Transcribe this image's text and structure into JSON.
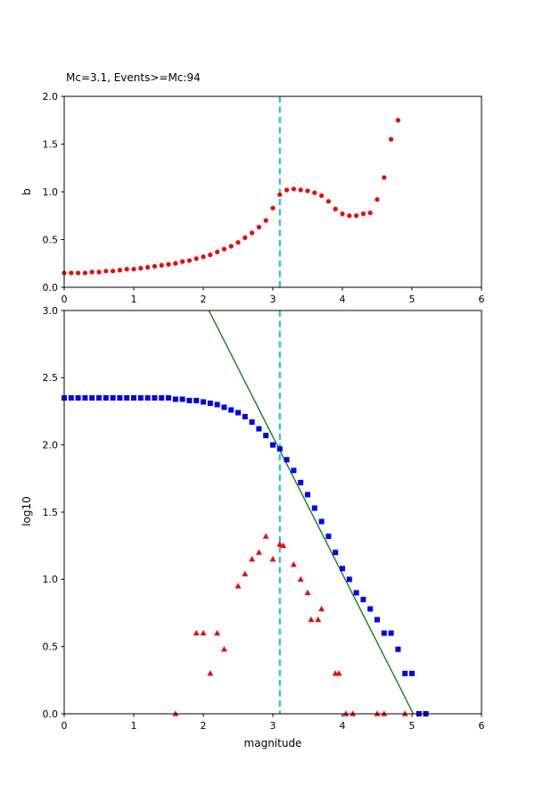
{
  "figure": {
    "background": "#ffffff",
    "frame_color": "#000000"
  },
  "chart_data": [
    {
      "type": "scatter",
      "name": "b-value-vs-magnitude",
      "title": "Mc=3.1, Events>=Mc:94",
      "xlabel": "",
      "ylabel": "b",
      "xlim": [
        0,
        6
      ],
      "ylim": [
        0,
        2
      ],
      "grid": false,
      "legend": "none",
      "xticks": [
        {
          "v": 0,
          "label": "0"
        },
        {
          "v": 1,
          "label": "1"
        },
        {
          "v": 2,
          "label": "2"
        },
        {
          "v": 3,
          "label": "3"
        },
        {
          "v": 4,
          "label": "4"
        },
        {
          "v": 5,
          "label": "5"
        },
        {
          "v": 6,
          "label": "6"
        }
      ],
      "yticks": [
        {
          "v": 0.0,
          "label": "0.0"
        },
        {
          "v": 0.5,
          "label": "0.5"
        },
        {
          "v": 1.0,
          "label": "1.0"
        },
        {
          "v": 1.5,
          "label": "1.5"
        },
        {
          "v": 2.0,
          "label": "2.0"
        }
      ],
      "vline": {
        "name": "mc-cutoff-line",
        "x": 3.1,
        "color": "#00cccc",
        "style": "dashed"
      },
      "series": [
        {
          "name": "b-value-points",
          "marker": "circle",
          "color": "#ff0000",
          "points": [
            [
              0.0,
              0.15
            ],
            [
              0.1,
              0.15
            ],
            [
              0.2,
              0.15
            ],
            [
              0.3,
              0.15
            ],
            [
              0.4,
              0.16
            ],
            [
              0.5,
              0.16
            ],
            [
              0.6,
              0.17
            ],
            [
              0.7,
              0.17
            ],
            [
              0.8,
              0.18
            ],
            [
              0.9,
              0.19
            ],
            [
              1.0,
              0.19
            ],
            [
              1.1,
              0.2
            ],
            [
              1.2,
              0.21
            ],
            [
              1.3,
              0.22
            ],
            [
              1.4,
              0.23
            ],
            [
              1.5,
              0.24
            ],
            [
              1.6,
              0.25
            ],
            [
              1.7,
              0.27
            ],
            [
              1.8,
              0.28
            ],
            [
              1.9,
              0.3
            ],
            [
              2.0,
              0.32
            ],
            [
              2.1,
              0.34
            ],
            [
              2.2,
              0.37
            ],
            [
              2.3,
              0.4
            ],
            [
              2.4,
              0.43
            ],
            [
              2.5,
              0.47
            ],
            [
              2.6,
              0.52
            ],
            [
              2.7,
              0.57
            ],
            [
              2.8,
              0.63
            ],
            [
              2.9,
              0.7
            ],
            [
              3.0,
              0.83
            ],
            [
              3.1,
              0.97
            ],
            [
              3.2,
              1.02
            ],
            [
              3.3,
              1.03
            ],
            [
              3.4,
              1.02
            ],
            [
              3.5,
              1.01
            ],
            [
              3.6,
              0.99
            ],
            [
              3.7,
              0.96
            ],
            [
              3.8,
              0.9
            ],
            [
              3.9,
              0.82
            ],
            [
              4.0,
              0.77
            ],
            [
              4.1,
              0.75
            ],
            [
              4.2,
              0.75
            ],
            [
              4.3,
              0.77
            ],
            [
              4.4,
              0.78
            ],
            [
              4.5,
              0.92
            ],
            [
              4.6,
              1.15
            ],
            [
              4.7,
              1.55
            ],
            [
              4.8,
              1.75
            ]
          ]
        }
      ]
    },
    {
      "type": "scatter",
      "name": "frequency-magnitude-distribution",
      "title": "",
      "xlabel": "magnitude",
      "ylabel": "log10",
      "xlim": [
        0,
        6
      ],
      "ylim": [
        0,
        3
      ],
      "grid": false,
      "legend": "none",
      "xticks": [
        {
          "v": 0,
          "label": "0"
        },
        {
          "v": 1,
          "label": "1"
        },
        {
          "v": 2,
          "label": "2"
        },
        {
          "v": 3,
          "label": "3"
        },
        {
          "v": 4,
          "label": "4"
        },
        {
          "v": 5,
          "label": "5"
        },
        {
          "v": 6,
          "label": "6"
        }
      ],
      "yticks": [
        {
          "v": 0.0,
          "label": "0.0"
        },
        {
          "v": 0.5,
          "label": "0.5"
        },
        {
          "v": 1.0,
          "label": "1.0"
        },
        {
          "v": 1.5,
          "label": "1.5"
        },
        {
          "v": 2.0,
          "label": "2.0"
        },
        {
          "v": 2.5,
          "label": "2.5"
        },
        {
          "v": 3.0,
          "label": "3.0"
        }
      ],
      "vline": {
        "name": "mc-cutoff-line",
        "x": 3.1,
        "color": "#00cccc",
        "style": "dashed"
      },
      "fit_line": {
        "name": "gutenberg-richter-fit",
        "color": "#008000",
        "x": [
          2.08,
          5.02
        ],
        "y": [
          3.0,
          0.0
        ]
      },
      "series": [
        {
          "name": "cumulative-counts",
          "marker": "square",
          "color": "#0000ff",
          "points": [
            [
              0.0,
              2.35
            ],
            [
              0.1,
              2.35
            ],
            [
              0.2,
              2.35
            ],
            [
              0.3,
              2.35
            ],
            [
              0.4,
              2.35
            ],
            [
              0.5,
              2.35
            ],
            [
              0.6,
              2.35
            ],
            [
              0.7,
              2.35
            ],
            [
              0.8,
              2.35
            ],
            [
              0.9,
              2.35
            ],
            [
              1.0,
              2.35
            ],
            [
              1.1,
              2.35
            ],
            [
              1.2,
              2.35
            ],
            [
              1.3,
              2.35
            ],
            [
              1.4,
              2.35
            ],
            [
              1.5,
              2.35
            ],
            [
              1.6,
              2.34
            ],
            [
              1.7,
              2.34
            ],
            [
              1.8,
              2.33
            ],
            [
              1.9,
              2.33
            ],
            [
              2.0,
              2.32
            ],
            [
              2.1,
              2.31
            ],
            [
              2.2,
              2.3
            ],
            [
              2.3,
              2.28
            ],
            [
              2.4,
              2.26
            ],
            [
              2.5,
              2.24
            ],
            [
              2.6,
              2.21
            ],
            [
              2.7,
              2.17
            ],
            [
              2.8,
              2.12
            ],
            [
              2.9,
              2.07
            ],
            [
              3.0,
              2.0
            ],
            [
              3.1,
              1.97
            ],
            [
              3.2,
              1.89
            ],
            [
              3.3,
              1.81
            ],
            [
              3.4,
              1.72
            ],
            [
              3.5,
              1.63
            ],
            [
              3.6,
              1.53
            ],
            [
              3.7,
              1.43
            ],
            [
              3.8,
              1.32
            ],
            [
              3.9,
              1.2
            ],
            [
              4.0,
              1.08
            ],
            [
              4.1,
              1.0
            ],
            [
              4.2,
              0.9
            ],
            [
              4.3,
              0.85
            ],
            [
              4.4,
              0.78
            ],
            [
              4.5,
              0.7
            ],
            [
              4.6,
              0.6
            ],
            [
              4.7,
              0.6
            ],
            [
              4.8,
              0.48
            ],
            [
              4.9,
              0.3
            ],
            [
              5.0,
              0.3
            ],
            [
              5.1,
              0.0
            ],
            [
              5.2,
              0.0
            ]
          ]
        },
        {
          "name": "noncumulative-counts",
          "marker": "triangle",
          "color": "#ff0000",
          "points": [
            [
              1.6,
              0.0
            ],
            [
              1.9,
              0.6
            ],
            [
              2.0,
              0.6
            ],
            [
              2.1,
              0.3
            ],
            [
              2.2,
              0.6
            ],
            [
              2.3,
              0.48
            ],
            [
              2.5,
              0.95
            ],
            [
              2.6,
              1.04
            ],
            [
              2.7,
              1.15
            ],
            [
              2.8,
              1.2
            ],
            [
              2.9,
              1.32
            ],
            [
              3.0,
              1.15
            ],
            [
              3.1,
              1.26
            ],
            [
              3.15,
              1.25
            ],
            [
              3.3,
              1.11
            ],
            [
              3.4,
              1.0
            ],
            [
              3.5,
              0.9
            ],
            [
              3.55,
              0.7
            ],
            [
              3.65,
              0.7
            ],
            [
              3.7,
              0.78
            ],
            [
              3.9,
              0.3
            ],
            [
              3.95,
              0.3
            ],
            [
              4.05,
              0.0
            ],
            [
              4.15,
              0.0
            ],
            [
              4.5,
              0.0
            ],
            [
              4.6,
              0.0
            ],
            [
              4.9,
              0.0
            ]
          ]
        }
      ]
    }
  ]
}
